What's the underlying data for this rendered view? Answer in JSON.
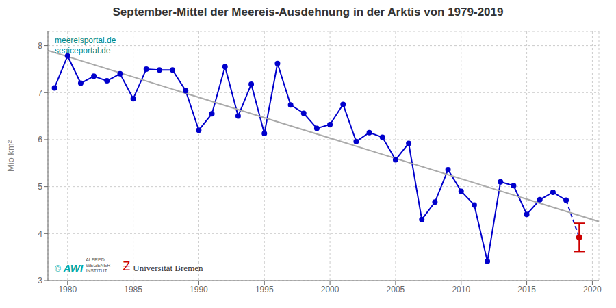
{
  "chart_data": {
    "type": "line",
    "title": "September-Mittel der Meereis-Ausdehnung in der Arktis von 1979-2019",
    "y_label": "Mio km²",
    "grid": true,
    "xlim": [
      1978.5,
      2020.5
    ],
    "ylim": [
      3.0,
      8.3
    ],
    "xticks": [
      1980,
      1985,
      1990,
      1995,
      2000,
      2005,
      2010,
      2015,
      2020
    ],
    "yticks": [
      3,
      4,
      5,
      6,
      7,
      8
    ],
    "series": [
      {
        "type": "line",
        "color": "#0000cc",
        "marker": "circle",
        "line_style": "solid",
        "x": [
          1979,
          1980,
          1981,
          1982,
          1983,
          1984,
          1985,
          1986,
          1987,
          1988,
          1989,
          1990,
          1991,
          1992,
          1993,
          1994,
          1995,
          1996,
          1997,
          1998,
          1999,
          2000,
          2001,
          2002,
          2003,
          2004,
          2005,
          2006,
          2007,
          2008,
          2009,
          2010,
          2011,
          2012,
          2013,
          2014,
          2015,
          2016,
          2017,
          2018
        ],
        "values": [
          7.1,
          7.78,
          7.2,
          7.35,
          7.25,
          7.4,
          6.87,
          7.5,
          7.48,
          7.48,
          7.04,
          6.2,
          6.55,
          7.55,
          6.5,
          7.18,
          6.13,
          7.62,
          6.74,
          6.56,
          6.24,
          6.32,
          6.75,
          5.96,
          6.15,
          6.05,
          5.57,
          5.92,
          4.3,
          4.67,
          5.36,
          4.9,
          4.61,
          3.41,
          5.1,
          5.02,
          4.41,
          4.72,
          4.88,
          4.71
        ]
      },
      {
        "type": "line",
        "color": "#0000cc",
        "line_style": "dashed",
        "x": [
          2018,
          2019
        ],
        "values": [
          4.71,
          3.92
        ]
      },
      {
        "type": "scatter",
        "color": "#cc0000",
        "marker": "circle",
        "x": [
          2019
        ],
        "values": [
          3.92
        ],
        "error": [
          0.3
        ]
      },
      {
        "type": "line",
        "color": "#aaaaaa",
        "line_style": "solid",
        "x": [
          1978.5,
          2020.5
        ],
        "values": [
          7.896,
          4.257
        ]
      }
    ],
    "annotations": [
      {
        "text": "meereisportal.de",
        "color": "#008888"
      },
      {
        "text": "seaiceportal.de",
        "color": "#008888"
      },
      {
        "text": "©",
        "color": "#00aaaa"
      },
      {
        "text": "AWI",
        "color": "#00aaaa"
      },
      {
        "text": "ALFRED\nWEGENER\nINSTITUT",
        "color": "#555555"
      },
      {
        "text": "Ƶ",
        "color": "#cc0000"
      },
      {
        "text": "Universität Bremen",
        "color": "#333333"
      }
    ]
  }
}
